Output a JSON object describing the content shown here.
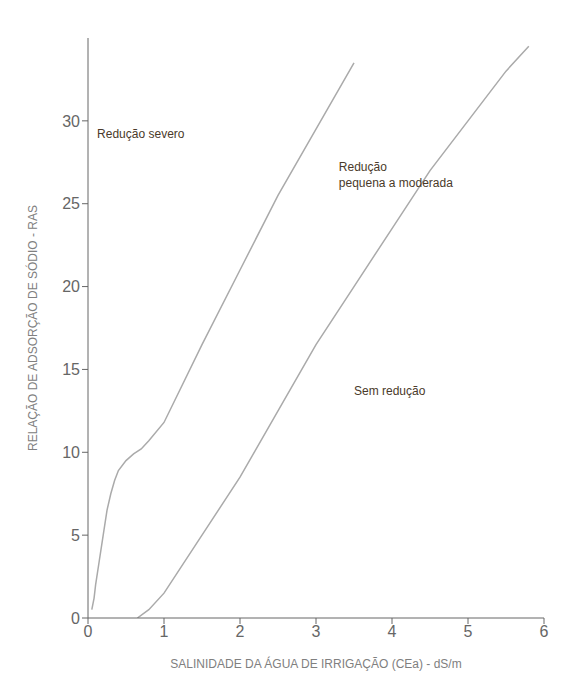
{
  "chart_data": {
    "type": "line",
    "xlabel": "SALINIDADE DA ÁGUA DE IRRIGAÇÃO (CEa) - dS/m",
    "ylabel": "RELAÇÃO DE ADSORÇÃO DE SÓDIO - RAS",
    "xlim": [
      0,
      6
    ],
    "ylim": [
      0,
      35
    ],
    "xticks": [
      0,
      1,
      2,
      3,
      4,
      5,
      6
    ],
    "yticks": [
      0,
      5,
      10,
      15,
      20,
      25,
      30
    ],
    "grid": false,
    "series": [
      {
        "color": "#aaaaaa",
        "x": [
          0.05,
          0.08,
          0.1,
          0.15,
          0.2,
          0.25,
          0.3,
          0.35,
          0.4,
          0.5,
          0.6,
          0.7,
          0.8,
          1.0,
          1.5,
          2.0,
          2.5,
          3.0,
          3.5
        ],
        "values": [
          0.5,
          1.2,
          2.0,
          3.5,
          5.0,
          6.5,
          7.5,
          8.3,
          8.9,
          9.5,
          9.9,
          10.2,
          10.7,
          11.8,
          16.5,
          21.0,
          25.5,
          29.5,
          33.5
        ]
      },
      {
        "color": "#aaaaaa",
        "x": [
          0.65,
          0.8,
          1.0,
          1.5,
          2.0,
          2.5,
          3.0,
          3.5,
          4.0,
          4.5,
          5.0,
          5.5,
          5.8
        ],
        "values": [
          0.0,
          0.5,
          1.5,
          5.0,
          8.5,
          12.5,
          16.5,
          20.0,
          23.5,
          27.0,
          30.0,
          33.0,
          34.5
        ]
      }
    ],
    "annotations": [
      {
        "text": "Redução severo",
        "x": 0.12,
        "y": 29.5
      },
      {
        "text": "Redução\npequena a moderada",
        "x": 3.3,
        "y": 27.5
      },
      {
        "text": "Sem redução",
        "x": 3.5,
        "y": 14.0
      }
    ]
  }
}
